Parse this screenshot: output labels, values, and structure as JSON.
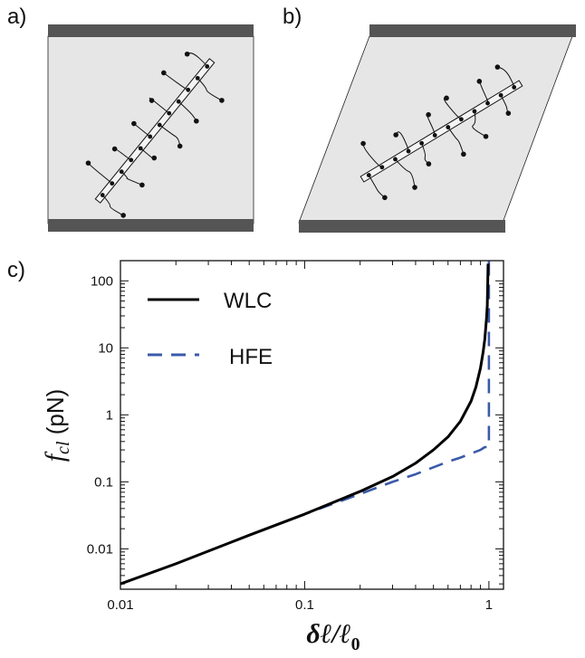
{
  "panels": {
    "a": "a)",
    "b": "b)",
    "c": "c)"
  },
  "colors": {
    "plate": "#555555",
    "cell": "#e6e6e6",
    "wlc": "#000000",
    "hfe": "#3a5aa8"
  },
  "chart_data": {
    "type": "line",
    "title": "",
    "xlabel": "δℓ/ℓ0",
    "ylabel": "fcl (pN)",
    "xscale": "log",
    "yscale": "log",
    "xlim": [
      0.01,
      1.2
    ],
    "ylim": [
      0.0025,
      200
    ],
    "xticks": [
      0.01,
      0.1,
      1
    ],
    "xtick_labels": [
      "0.01",
      "0.1",
      "1"
    ],
    "yticks": [
      0.01,
      0.1,
      1,
      10,
      100
    ],
    "ytick_labels": [
      "0.01",
      "0.1",
      "1",
      "10",
      "100"
    ],
    "grid": false,
    "legend_position": "top-left",
    "series": [
      {
        "name": "WLC",
        "style": "solid",
        "x": [
          0.01,
          0.02,
          0.05,
          0.1,
          0.2,
          0.3,
          0.4,
          0.5,
          0.6,
          0.7,
          0.8,
          0.85,
          0.9,
          0.93,
          0.95,
          0.97,
          0.98,
          0.99
        ],
        "y": [
          0.003,
          0.006,
          0.016,
          0.033,
          0.072,
          0.12,
          0.19,
          0.3,
          0.47,
          0.8,
          1.6,
          2.6,
          5.0,
          8.6,
          13.5,
          27,
          43,
          180
        ]
      },
      {
        "name": "HFE",
        "style": "dashed",
        "x": [
          0.01,
          0.02,
          0.05,
          0.1,
          0.2,
          0.3,
          0.4,
          0.5,
          0.6,
          0.7,
          0.8,
          0.9,
          0.95,
          1.0,
          1.0
        ],
        "y": [
          0.003,
          0.006,
          0.016,
          0.033,
          0.066,
          0.1,
          0.13,
          0.165,
          0.2,
          0.23,
          0.265,
          0.3,
          0.33,
          0.33,
          200
        ]
      }
    ]
  }
}
